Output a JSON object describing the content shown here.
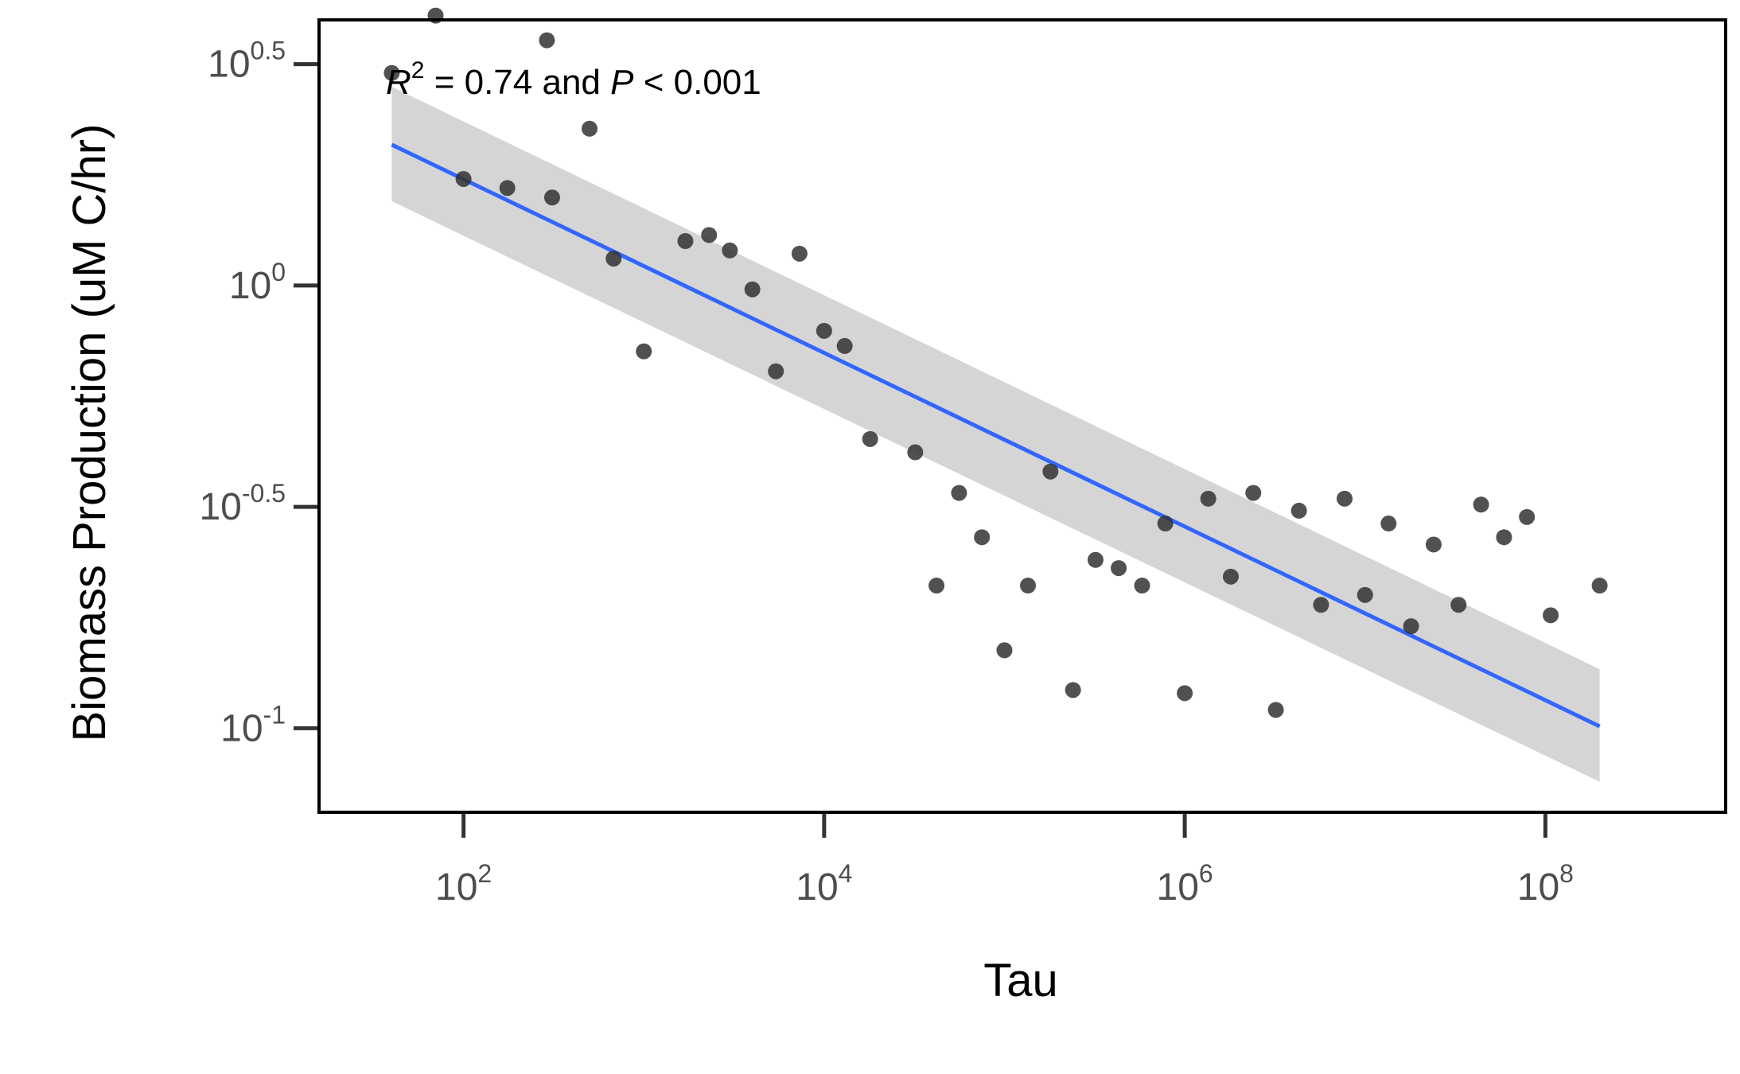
{
  "chart_data": {
    "type": "scatter",
    "xlabel": "Tau",
    "ylabel": "Biomass Production (uM C/hr)",
    "x_scale": "log10",
    "y_scale": "log10",
    "xlim": [
      15.8,
      1000000000
    ],
    "ylim": [
      0.0646,
      3.98
    ],
    "x_ticks": [
      {
        "value": 100,
        "base": "10",
        "exp": "2"
      },
      {
        "value": 10000,
        "base": "10",
        "exp": "4"
      },
      {
        "value": 1000000,
        "base": "10",
        "exp": "6"
      },
      {
        "value": 100000000,
        "base": "10",
        "exp": "8"
      }
    ],
    "y_ticks": [
      {
        "value": 0.1,
        "base": "10",
        "exp": "-1"
      },
      {
        "value": 0.3162,
        "base": "10",
        "exp": "-0.5"
      },
      {
        "value": 1,
        "base": "10",
        "exp": "0"
      },
      {
        "value": 3.1623,
        "base": "10",
        "exp": "0.5"
      }
    ],
    "annotation": {
      "r_symbol": "R",
      "r_exp": "2",
      "r_value": " = 0.74 and ",
      "p_symbol": "P",
      "p_value": " < 0.001"
    },
    "grid": false,
    "legend": "none",
    "colors": {
      "points": "#333333",
      "fit_line": "#3366ff",
      "confidence_band": "#bfbfbf"
    },
    "points": [
      {
        "x": 40,
        "y": 3.02
      },
      {
        "x": 70,
        "y": 4.07
      },
      {
        "x": 100,
        "y": 1.74
      },
      {
        "x": 175,
        "y": 1.66
      },
      {
        "x": 290,
        "y": 3.58
      },
      {
        "x": 310,
        "y": 1.58
      },
      {
        "x": 500,
        "y": 2.26
      },
      {
        "x": 680,
        "y": 1.15
      },
      {
        "x": 1000,
        "y": 0.71
      },
      {
        "x": 1700,
        "y": 1.26
      },
      {
        "x": 2300,
        "y": 1.3
      },
      {
        "x": 3000,
        "y": 1.2
      },
      {
        "x": 4000,
        "y": 0.98
      },
      {
        "x": 5400,
        "y": 0.64
      },
      {
        "x": 7300,
        "y": 1.18
      },
      {
        "x": 10000,
        "y": 0.79
      },
      {
        "x": 13000,
        "y": 0.73
      },
      {
        "x": 18000,
        "y": 0.45
      },
      {
        "x": 32000,
        "y": 0.42
      },
      {
        "x": 42000,
        "y": 0.21
      },
      {
        "x": 56000,
        "y": 0.34
      },
      {
        "x": 75000,
        "y": 0.27
      },
      {
        "x": 100000,
        "y": 0.15
      },
      {
        "x": 135000,
        "y": 0.21
      },
      {
        "x": 180000,
        "y": 0.38
      },
      {
        "x": 240000,
        "y": 0.122
      },
      {
        "x": 320000,
        "y": 0.24
      },
      {
        "x": 430000,
        "y": 0.23
      },
      {
        "x": 580000,
        "y": 0.21
      },
      {
        "x": 780000,
        "y": 0.29
      },
      {
        "x": 1000000,
        "y": 0.12
      },
      {
        "x": 1350000,
        "y": 0.33
      },
      {
        "x": 1800000,
        "y": 0.22
      },
      {
        "x": 2400000,
        "y": 0.34
      },
      {
        "x": 3200000,
        "y": 0.11
      },
      {
        "x": 4300000,
        "y": 0.31
      },
      {
        "x": 5700000,
        "y": 0.19
      },
      {
        "x": 7700000,
        "y": 0.33
      },
      {
        "x": 10000000,
        "y": 0.2
      },
      {
        "x": 13500000,
        "y": 0.29
      },
      {
        "x": 18000000,
        "y": 0.17
      },
      {
        "x": 24000000,
        "y": 0.26
      },
      {
        "x": 33000000,
        "y": 0.19
      },
      {
        "x": 44000000,
        "y": 0.32
      },
      {
        "x": 59000000,
        "y": 0.27
      },
      {
        "x": 79000000,
        "y": 0.3
      },
      {
        "x": 107000000,
        "y": 0.18
      },
      {
        "x": 200000000,
        "y": 0.21
      }
    ],
    "fit": {
      "x": [
        40,
        200000000
      ],
      "y": [
        2.08,
        0.101
      ],
      "ci_upper": [
        2.81,
        0.136
      ],
      "ci_lower": [
        1.55,
        0.0757
      ]
    }
  }
}
